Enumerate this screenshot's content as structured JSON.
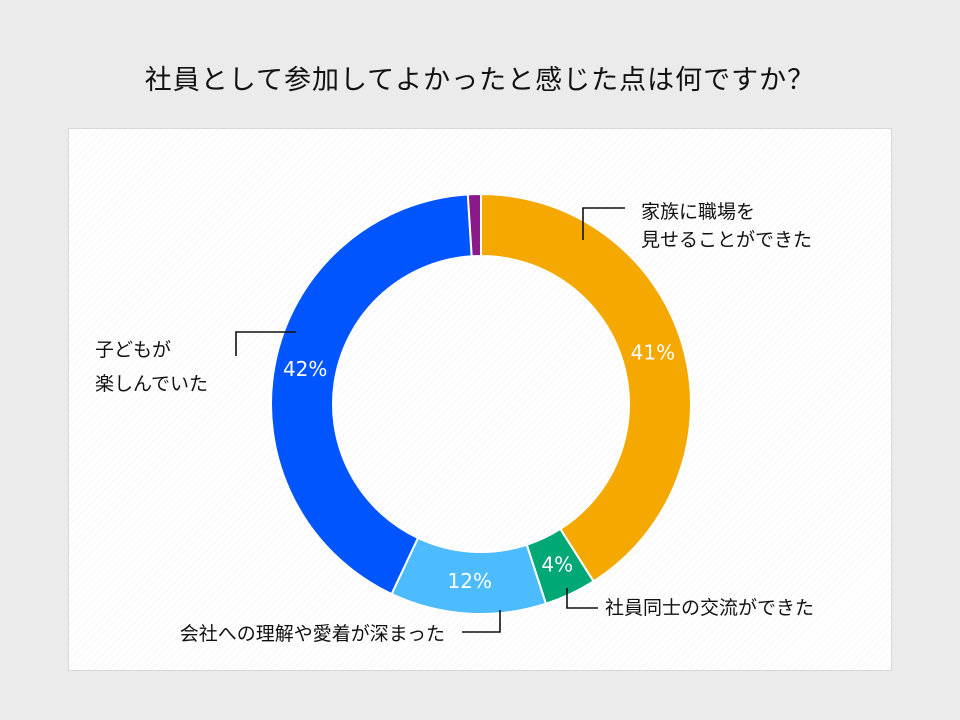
{
  "title": "社員として参加してよかったと感じた点は何ですか？",
  "chart_data": {
    "type": "pie",
    "donut": true,
    "title": "社員として参加してよかったと感じた点は何ですか？",
    "series": [
      {
        "name": "家族に職場を見せることができた",
        "label_lines": [
          "家族に職場を",
          "見せることができた"
        ],
        "value": 41,
        "value_label": "41%",
        "color": "#f5a800"
      },
      {
        "name": "社員同士の交流ができた",
        "label_lines": [
          "社員同士の交流ができた"
        ],
        "value": 4,
        "value_label": "4%",
        "color": "#00a876"
      },
      {
        "name": "会社への理解や愛着が深まった",
        "label_lines": [
          "会社への理解や愛着が深まった"
        ],
        "value": 12,
        "value_label": "12%",
        "color": "#4dbcff"
      },
      {
        "name": "子どもが楽しんでいた",
        "label_lines": [
          "子どもが",
          "楽しんでいた"
        ],
        "value": 42,
        "value_label": "42%",
        "color": "#0055ff"
      },
      {
        "name": "",
        "label_lines": [],
        "value": 1,
        "value_label": "",
        "color": "#8a1a8a"
      }
    ]
  }
}
